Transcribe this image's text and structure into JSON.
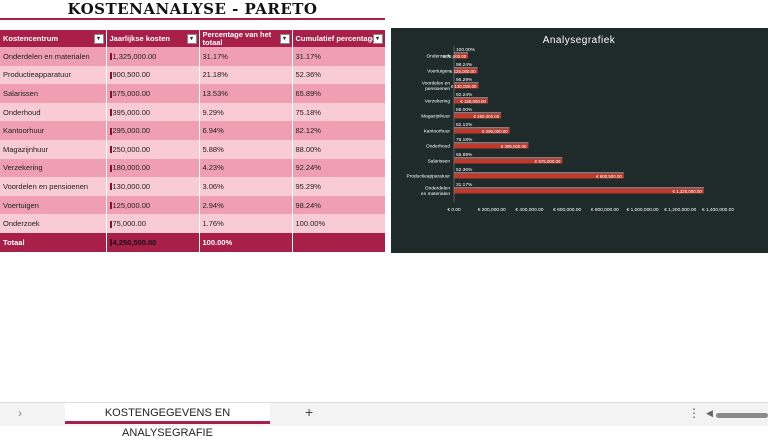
{
  "title": "KOSTENANALYSE - PARETO",
  "table": {
    "headers": [
      "Kostencentrum",
      "Jaarlijkse kosten",
      "Percentage van het totaal",
      "Cumulatief percentage"
    ],
    "rows": [
      [
        "Onderdelen en materialen",
        "1,325,000.00",
        "31.17%",
        "31.17%"
      ],
      [
        "Productieapparatuur",
        "900,500.00",
        "21.18%",
        "52.36%"
      ],
      [
        "Salarissen",
        "575,000.00",
        "13.53%",
        "65.89%"
      ],
      [
        "Onderhoud",
        "395,000.00",
        "9.29%",
        "75.18%"
      ],
      [
        "Kantoorhuur",
        "295,000.00",
        "6.94%",
        "82.12%"
      ],
      [
        "Magazijnhuur",
        "250,000.00",
        "5.88%",
        "88.00%"
      ],
      [
        "Verzekering",
        "180,000.00",
        "4.23%",
        "92.24%"
      ],
      [
        "Voordelen en pensioenen",
        "130,000.00",
        "3.06%",
        "95.29%"
      ],
      [
        "Voertuigen",
        "125,000.00",
        "2.94%",
        "98.24%"
      ],
      [
        "Onderzoek",
        "75,000.00",
        "1.76%",
        "100.00%"
      ]
    ],
    "total": [
      "Totaal",
      "4,250,500.00",
      "100.00%",
      ""
    ]
  },
  "chart_data": {
    "type": "bar",
    "orientation": "horizontal",
    "title": "Analysegrafiek",
    "categories": [
      "Onderdelen en materialen",
      "Productieapparatuur",
      "Salarissen",
      "Onderhoud",
      "Kantoorhuur",
      "Magazijnhuur",
      "Verzekering",
      "Voordelen en pensioenen",
      "Voertuigen",
      "Onderzoek"
    ],
    "series": [
      {
        "values": [
          1325000,
          900500,
          575000,
          395000,
          295000,
          250000,
          180000,
          130000,
          125000,
          75000
        ],
        "labels": [
          "€ 1,325,000.00",
          "€ 900,500.00",
          "€ 575,000.00",
          "€ 395,000.00",
          "€ 295,000.00",
          "€ 250,000.00",
          "€ 180,000.00",
          "€ 130,000.00",
          "€ 125,000.00",
          "€ 75,000.00"
        ],
        "color": "#c0392b"
      },
      {
        "values": [
          31.17,
          52.36,
          65.89,
          75.18,
          82.12,
          88.0,
          92.24,
          95.29,
          98.24,
          100.0
        ],
        "labels": [
          "31.17%",
          "52.36%",
          "65.89%",
          "75.18%",
          "82.12%",
          "88.00%",
          "92.24%",
          "95.29%",
          "98.24%",
          "100.00%"
        ],
        "color": "#e8a0a8"
      }
    ],
    "xlim": [
      0,
      1400000
    ],
    "xticks": [
      0,
      200000,
      400000,
      600000,
      800000,
      1000000,
      1200000,
      1400000
    ],
    "xtick_labels": [
      "€ 0.00",
      "€ 200,000.00",
      "€ 400,000.00",
      "€ 600,000.00",
      "€ 800,000.00",
      "€ 1,000,000.00",
      "€ 1,200,000.00",
      "€ 1,400,000.00"
    ],
    "grid": false,
    "colors": {
      "background": "#1e2b2a",
      "text": "#ffffff"
    }
  },
  "sheet_tabs": {
    "active": "KOSTENGEGEVENS EN ANALYSEGRAFIE"
  },
  "icons": {
    "prev": "chevron-right-icon",
    "add": "plus-icon",
    "more": "vertical-dots-icon"
  },
  "colors": {
    "accent": "#a8204a",
    "row_dark": "#ef9fb1",
    "row_light": "#f8cbd5"
  }
}
